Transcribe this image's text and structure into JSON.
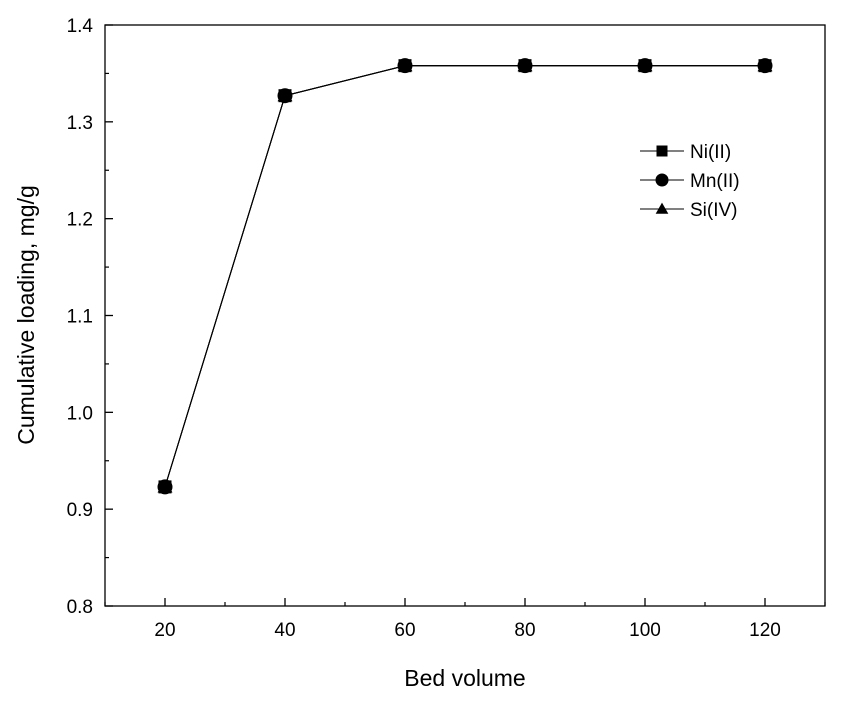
{
  "chart_data": {
    "type": "line",
    "title": "",
    "xlabel": "Bed volume",
    "ylabel": "Cumulative loading, mg/g",
    "xlim": [
      10,
      130
    ],
    "ylim": [
      0.8,
      1.4
    ],
    "x_ticks": [
      20,
      40,
      60,
      80,
      100,
      120
    ],
    "y_ticks": [
      0.8,
      0.9,
      1.0,
      1.1,
      1.2,
      1.3,
      1.4
    ],
    "x_tick_labels": [
      "20",
      "40",
      "60",
      "80",
      "100",
      "120"
    ],
    "y_tick_labels": [
      "0.8",
      "0.9",
      "1.0",
      "1.1",
      "1.2",
      "1.3",
      "1.4"
    ],
    "legend_position": "upper-right",
    "x": [
      20,
      40,
      60,
      80,
      100,
      120
    ],
    "series": [
      {
        "name": "Ni(II)",
        "marker": "square",
        "values": [
          0.923,
          1.327,
          1.358,
          1.358,
          1.358,
          1.358
        ]
      },
      {
        "name": "Mn(II)",
        "marker": "circle",
        "values": [
          0.923,
          1.327,
          1.358,
          1.358,
          1.358,
          1.358
        ]
      },
      {
        "name": "Si(IV)",
        "marker": "triangle",
        "values": [
          0.923,
          1.327,
          1.358,
          1.358,
          1.358,
          1.358
        ]
      }
    ],
    "colors": {
      "line": "#000000",
      "marker": "#000000"
    }
  }
}
